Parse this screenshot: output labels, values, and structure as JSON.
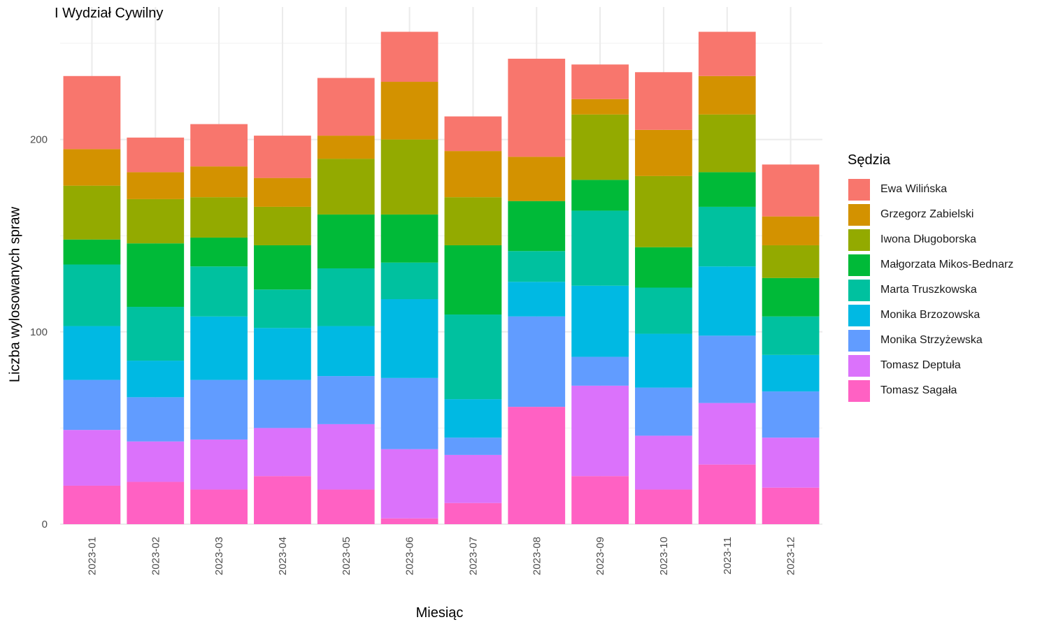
{
  "title": "I Wydział Cywilny",
  "chart_data": {
    "type": "bar",
    "stacked": true,
    "title": "I Wydział Cywilny",
    "xlabel": "Miesiąc",
    "ylabel": "Liczba wylosowanych spraw",
    "ylim": [
      0,
      268
    ],
    "yticks": [
      0,
      100,
      200
    ],
    "grid": true,
    "legend_title": "Sędzia",
    "legend_position": "right",
    "categories": [
      "2023-01",
      "2023-02",
      "2023-03",
      "2023-04",
      "2023-05",
      "2023-06",
      "2023-07",
      "2023-08",
      "2023-09",
      "2023-10",
      "2023-11",
      "2023-12"
    ],
    "series": [
      {
        "name": "Tomasz Sagała",
        "color": "#FF61C3",
        "values": [
          20,
          22,
          18,
          25,
          18,
          3,
          11,
          61,
          25,
          18,
          31,
          19
        ]
      },
      {
        "name": "Tomasz Deptuła",
        "color": "#DB72FB",
        "values": [
          29,
          21,
          26,
          25,
          34,
          36,
          25,
          0,
          47,
          28,
          32,
          26
        ]
      },
      {
        "name": "Monika Strzyżewska",
        "color": "#619CFF",
        "values": [
          26,
          23,
          31,
          25,
          25,
          37,
          9,
          47,
          15,
          25,
          35,
          24
        ]
      },
      {
        "name": "Monika Brzozowska",
        "color": "#00B9E3",
        "values": [
          28,
          19,
          33,
          27,
          26,
          41,
          20,
          18,
          37,
          28,
          36,
          19
        ]
      },
      {
        "name": "Marta Truszkowska",
        "color": "#00C19F",
        "values": [
          32,
          28,
          26,
          20,
          30,
          19,
          44,
          16,
          39,
          24,
          31,
          20
        ]
      },
      {
        "name": "Małgorzata Mikos-Bednarz",
        "color": "#00BA38",
        "values": [
          13,
          33,
          15,
          23,
          28,
          25,
          36,
          26,
          16,
          21,
          18,
          20
        ]
      },
      {
        "name": "Iwona Długoborska",
        "color": "#93AA00",
        "values": [
          28,
          23,
          21,
          20,
          29,
          39,
          25,
          0,
          34,
          37,
          30,
          17
        ]
      },
      {
        "name": "Grzegorz Zabielski",
        "color": "#D39200",
        "values": [
          19,
          14,
          16,
          15,
          12,
          30,
          24,
          23,
          8,
          24,
          20,
          15
        ]
      },
      {
        "name": "Ewa Wilińska",
        "color": "#F8766D",
        "values": [
          38,
          18,
          22,
          22,
          30,
          26,
          18,
          51,
          18,
          30,
          23,
          27
        ]
      }
    ],
    "legend_order": [
      "Ewa Wilińska",
      "Grzegorz Zabielski",
      "Iwona Długoborska",
      "Małgorzata Mikos-Bednarz",
      "Marta Truszkowska",
      "Monika Brzozowska",
      "Monika Strzyżewska",
      "Tomasz Deptuła",
      "Tomasz Sagała"
    ]
  }
}
